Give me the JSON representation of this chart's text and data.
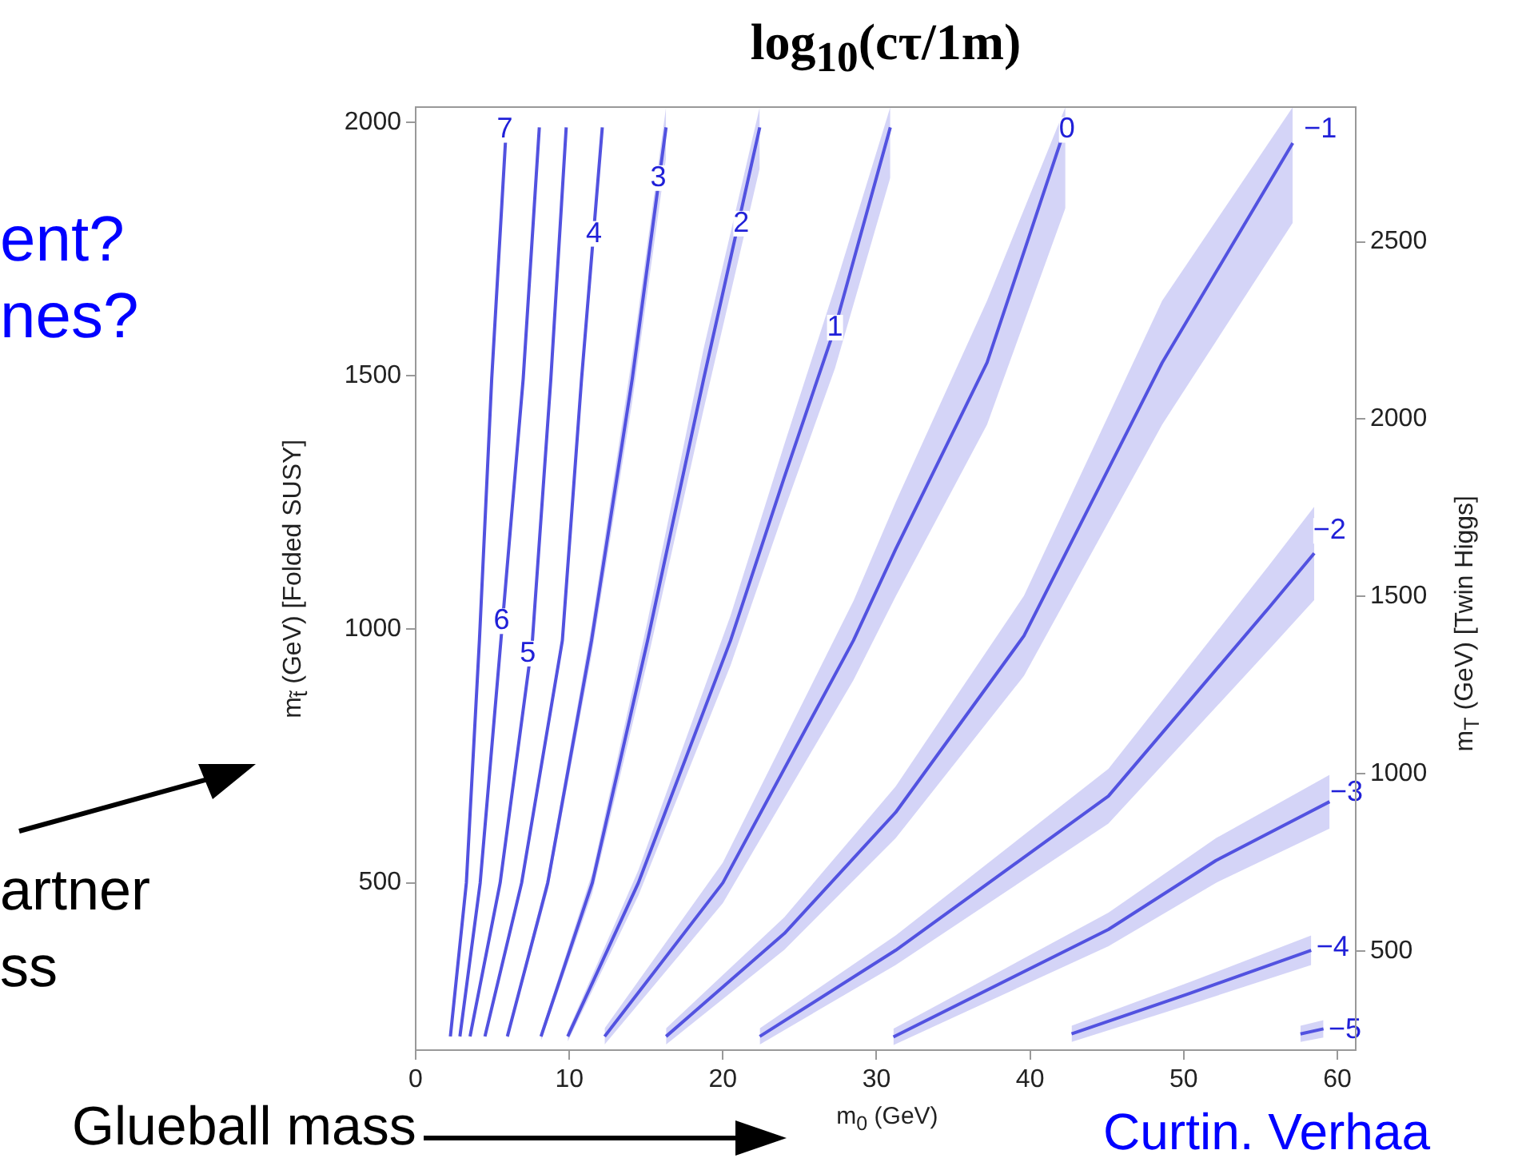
{
  "chart_data": {
    "type": "line",
    "title": "log$_{10}$(cτ/1m)",
    "xlabel": "m$_{0}$ (GeV)",
    "ylabel": "m$_{t̃}$ (GeV)     [Folded SUSY]",
    "y2label": "m$_{T}$ (GeV)     [Twin Higgs]",
    "xlim": [
      0,
      61.2
    ],
    "xticks": [
      0,
      10,
      20,
      30,
      40,
      50,
      60
    ],
    "ylim": [
      170,
      2030
    ],
    "yticks": [
      500,
      1000,
      1500,
      2000
    ],
    "y2lim": [
      220,
      2880
    ],
    "y2ticks": [
      500,
      1000,
      1500,
      2000,
      2500
    ],
    "grid": false,
    "legend": false,
    "marker": "none",
    "line_style": "solid",
    "series": [
      {
        "color": "#5252e0",
        "x": [
          2.26,
          3.3,
          4.15,
          4.95,
          5.9
        ],
        "values": [
          197,
          500,
          978,
          1494,
          1990
        ]
      },
      {
        "color": "#5252e0",
        "x": [
          2.88,
          4.2,
          5.55,
          7.0,
          8.05
        ],
        "values": [
          197,
          500,
          978,
          1494,
          1990
        ]
      },
      {
        "color": "#5252e0",
        "x": [
          3.54,
          5.5,
          7.6,
          8.8,
          9.8
        ],
        "values": [
          197,
          500,
          978,
          1494,
          1990
        ]
      },
      {
        "color": "#5252e0",
        "x": [
          4.51,
          6.9,
          9.55,
          10.8,
          12.15
        ],
        "values": [
          197,
          500,
          978,
          1494,
          1990
        ]
      },
      {
        "color": "#5252e0",
        "x": [
          5.97,
          8.6,
          11.45,
          14.1,
          16.3
        ],
        "values": [
          197,
          500,
          978,
          1494,
          1990
        ],
        "lower": [
          191,
          485,
          949,
          1449,
          1930
        ],
        "upper": [
          203,
          515,
          1007,
          1539,
          2030
        ]
      },
      {
        "color": "#5252e0",
        "x": [
          8.16,
          11.5,
          15.1,
          18.75,
          22.4
        ],
        "values": [
          197,
          500,
          978,
          1494,
          1990
        ],
        "lower": [
          189,
          480,
          939,
          1434,
          1910
        ],
        "upper": [
          205,
          520,
          1017,
          1554,
          2030
        ]
      },
      {
        "color": "#5252e0",
        "x": [
          9.9,
          14.5,
          20.5,
          24,
          27.3,
          30.9
        ],
        "values": [
          197,
          500,
          978,
          1300,
          1595,
          1990
        ],
        "lower": [
          187,
          475,
          929,
          1235,
          1515,
          1891
        ],
        "upper": [
          207,
          525,
          1027,
          1365,
          1675,
          2030
        ]
      },
      {
        "color": "#5252e0",
        "x": [
          12.3,
          20,
          28.5,
          31.25,
          37.2,
          42.3
        ],
        "values": [
          197,
          500,
          978,
          1158,
          1526,
          1990
        ],
        "lower": [
          181,
          460,
          900,
          1065,
          1404,
          1831
        ],
        "upper": [
          213,
          540,
          1056,
          1251,
          1648,
          2030
        ]
      },
      {
        "color": "#5252e0",
        "x": [
          16.3,
          24,
          31.25,
          39.6,
          48.6,
          57.1
        ],
        "values": [
          197,
          400,
          639,
          987,
          1526,
          1959
        ],
        "lower": [
          181,
          368,
          588,
          908,
          1404,
          1802
        ],
        "upper": [
          213,
          432,
          690,
          1066,
          1648,
          2030
        ]
      },
      {
        "color": "#5252e0",
        "x": [
          22.4,
          31.25,
          45.1,
          55.5,
          58.5
        ],
        "values": [
          197,
          367,
          671,
          1041,
          1150
        ],
        "lower": [
          181,
          338,
          617,
          958,
          1058
        ],
        "upper": [
          213,
          396,
          725,
          1124,
          1242
        ]
      },
      {
        "color": "#5252e0",
        "x": [
          31.1,
          45.1,
          52.1,
          59.5
        ],
        "values": [
          196,
          408,
          544,
          660
        ],
        "lower": [
          180,
          375,
          500,
          607
        ],
        "upper": [
          212,
          441,
          588,
          713
        ]
      },
      {
        "color": "#5252e0",
        "x": [
          42.7,
          50.3,
          58.3
        ],
        "values": [
          202,
          281,
          367
        ],
        "lower": [
          186,
          259,
          338
        ],
        "upper": [
          218,
          303,
          396
        ]
      },
      {
        "color": "#5252e0",
        "x": [
          57.6,
          59.1
        ],
        "values": [
          202,
          212
        ],
        "lower": [
          186,
          195
        ],
        "upper": [
          218,
          229
        ]
      }
    ],
    "annotations": [
      {
        "text": "7",
        "x": 5.8,
        "y": 1985
      },
      {
        "text": "6",
        "x": 5.6,
        "y": 1016
      },
      {
        "text": "5",
        "x": 7.3,
        "y": 952
      },
      {
        "text": "4",
        "x": 11.6,
        "y": 1780
      },
      {
        "text": "3",
        "x": 15.8,
        "y": 1890
      },
      {
        "text": "2",
        "x": 21.2,
        "y": 1800
      },
      {
        "text": "1",
        "x": 27.3,
        "y": 1595
      },
      {
        "text": "0",
        "x": 42.4,
        "y": 1985
      },
      {
        "text": "−1",
        "x": 58.9,
        "y": 1985
      },
      {
        "text": "−2",
        "x": 59.5,
        "y": 1194
      },
      {
        "text": "−3",
        "x": 60.6,
        "y": 677
      },
      {
        "text": "−4",
        "x": 59.7,
        "y": 371
      },
      {
        "text": "−5",
        "x": 60.5,
        "y": 209
      },
      "ent?",
      "nes?",
      "artner",
      "ss",
      "Glueball mass",
      "Curtin. Verhaa"
    ]
  }
}
